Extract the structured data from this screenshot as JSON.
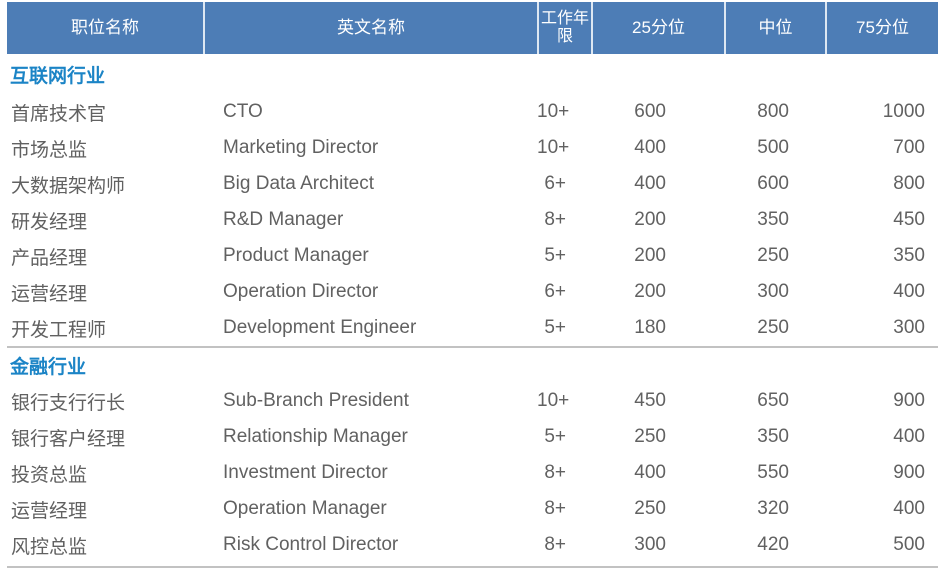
{
  "chart_data": {
    "type": "table",
    "title": "",
    "columns": [
      "职位名称",
      "英文名称",
      "工作年限",
      "25分位",
      "中位",
      "75分位"
    ],
    "sections": [
      {
        "title": "互联网行业",
        "rows": [
          [
            "首席技术官",
            "CTO",
            "10+",
            "600",
            "800",
            "1000"
          ],
          [
            "市场总监",
            "Marketing Director",
            "10+",
            "400",
            "500",
            "700"
          ],
          [
            "大数据架构师",
            "Big Data Architect",
            "6+",
            "400",
            "600",
            "800"
          ],
          [
            "研发经理",
            "R&D Manager",
            "8+",
            "200",
            "350",
            "450"
          ],
          [
            "产品经理",
            "Product Manager",
            "5+",
            "200",
            "250",
            "350"
          ],
          [
            "运营经理",
            "Operation Director",
            "6+",
            "200",
            "300",
            "400"
          ],
          [
            "开发工程师",
            "Development Engineer",
            "5+",
            "180",
            "250",
            "300"
          ]
        ]
      },
      {
        "title": "金融行业",
        "rows": [
          [
            "银行支行行长",
            "Sub-Branch President",
            "10+",
            "450",
            "650",
            "900"
          ],
          [
            "银行客户经理",
            "Relationship Manager",
            "5+",
            "250",
            "350",
            "400"
          ],
          [
            "投资总监",
            "Investment Director",
            "8+",
            "400",
            "550",
            "900"
          ],
          [
            "运营经理",
            "Operation Manager",
            "8+",
            "250",
            "320",
            "400"
          ],
          [
            "风控总监",
            "Risk Control Director",
            "8+",
            "300",
            "420",
            "500"
          ]
        ]
      }
    ]
  },
  "colors": {
    "header_bg": "#4d7db6",
    "header_text": "#ffffff",
    "header_separator": "#dde7f2",
    "section_title": "#1b84c6",
    "body_text": "#616161",
    "divider": "#c2c2c2",
    "page_bg": "#ffffff"
  }
}
